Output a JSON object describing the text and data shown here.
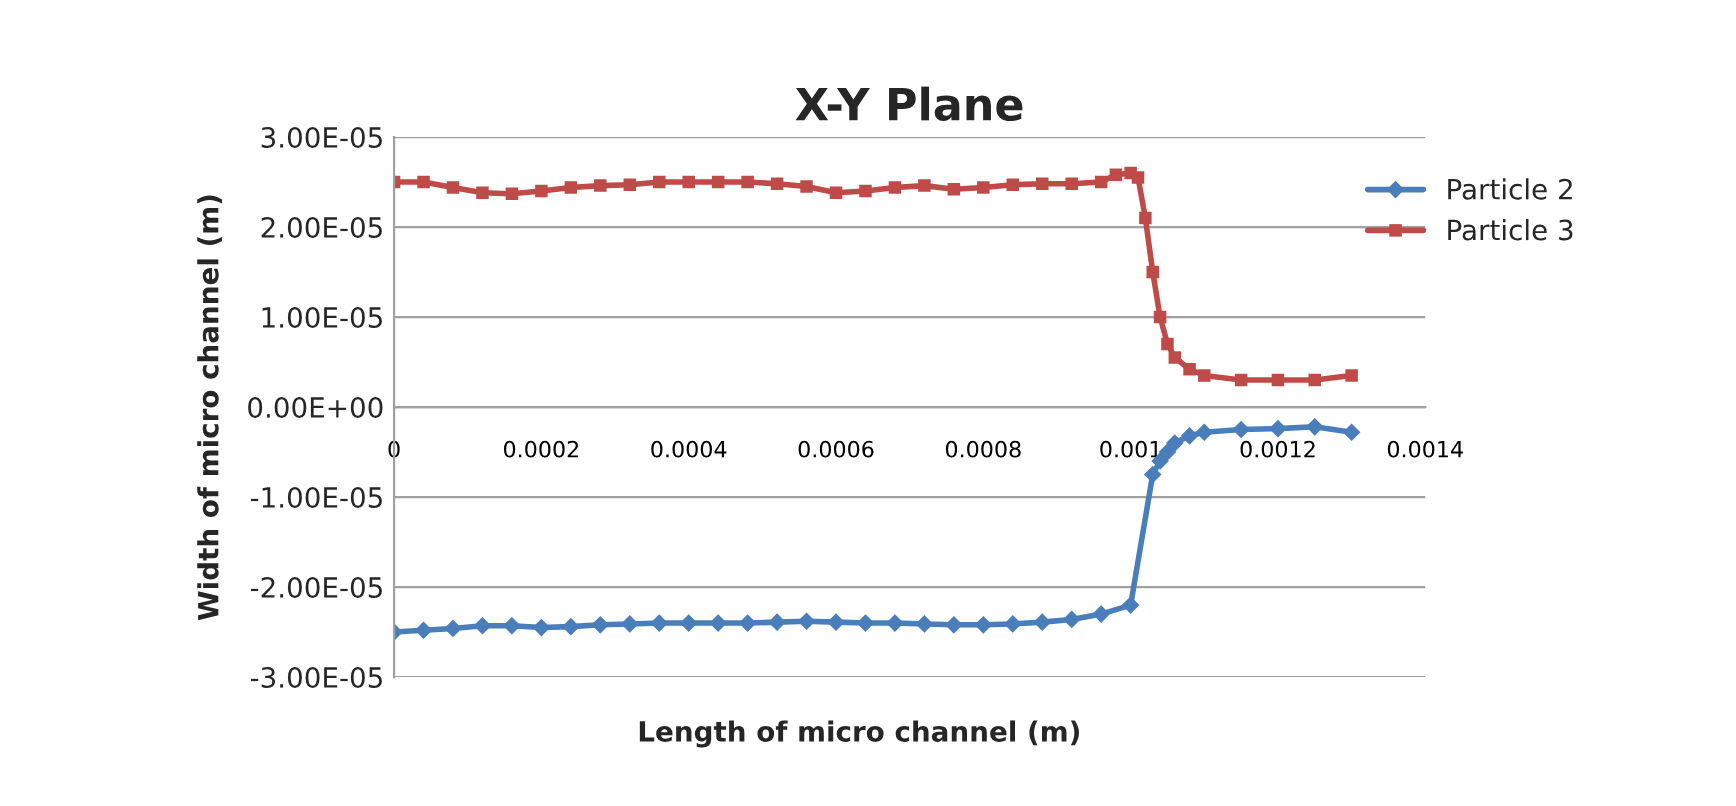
{
  "chart_data": {
    "type": "line",
    "title": "X-Y Plane",
    "xlabel": "Length of micro channel (m)",
    "ylabel": "Width of micro channel (m)",
    "xlim": [
      0,
      0.0014
    ],
    "xticks": [
      0,
      0.0002,
      0.0004,
      0.0006,
      0.0008,
      0.001,
      0.0012,
      0.0014
    ],
    "ylim": [
      -3e-05,
      3e-05
    ],
    "yticks": [
      {
        "value": -3e-05,
        "label": "-3.00E-05"
      },
      {
        "value": -2e-05,
        "label": "-2.00E-05"
      },
      {
        "value": -1e-05,
        "label": "-1.00E-05"
      },
      {
        "value": 0,
        "label": "0.00E+00"
      },
      {
        "value": 1e-05,
        "label": "1.00E-05"
      },
      {
        "value": 2e-05,
        "label": "2.00E-05"
      },
      {
        "value": 3e-05,
        "label": "3.00E-05"
      }
    ],
    "grid": "y",
    "legend": "right",
    "series": [
      {
        "name": "Particle 2",
        "color": "#4a7ebb",
        "marker": "diamond",
        "x": [
          0,
          4e-05,
          8e-05,
          0.00012,
          0.00016,
          0.0002,
          0.00024,
          0.00028,
          0.00032,
          0.00036,
          0.0004,
          0.00044,
          0.00048,
          0.00052,
          0.00056,
          0.0006,
          0.00064,
          0.00068,
          0.00072,
          0.00076,
          0.0008,
          0.00084,
          0.00088,
          0.00092,
          0.00096,
          0.001,
          0.00103,
          0.00104,
          0.00105,
          0.00106,
          0.00108,
          0.0011,
          0.00115,
          0.0012,
          0.00125,
          0.0013
        ],
        "values": [
          -2.5e-05,
          -2.48e-05,
          -2.46e-05,
          -2.43e-05,
          -2.43e-05,
          -2.45e-05,
          -2.44e-05,
          -2.42e-05,
          -2.41e-05,
          -2.4e-05,
          -2.4e-05,
          -2.4e-05,
          -2.4e-05,
          -2.39e-05,
          -2.38e-05,
          -2.39e-05,
          -2.4e-05,
          -2.4e-05,
          -2.41e-05,
          -2.42e-05,
          -2.42e-05,
          -2.41e-05,
          -2.39e-05,
          -2.36e-05,
          -2.3e-05,
          -2.2e-05,
          -7.5e-06,
          -6e-06,
          -5e-06,
          -4e-06,
          -3.2e-06,
          -2.8e-06,
          -2.5e-06,
          -2.4e-06,
          -2.2e-06,
          -2.8e-06
        ]
      },
      {
        "name": "Particle 3",
        "color": "#be4b48",
        "marker": "square",
        "x": [
          0,
          4e-05,
          8e-05,
          0.00012,
          0.00016,
          0.0002,
          0.00024,
          0.00028,
          0.00032,
          0.00036,
          0.0004,
          0.00044,
          0.00048,
          0.00052,
          0.00056,
          0.0006,
          0.00064,
          0.00068,
          0.00072,
          0.00076,
          0.0008,
          0.00084,
          0.00088,
          0.00092,
          0.00096,
          0.00098,
          0.001,
          0.00101,
          0.00102,
          0.00103,
          0.00104,
          0.00105,
          0.00106,
          0.00108,
          0.0011,
          0.00115,
          0.0012,
          0.00125,
          0.0013
        ],
        "values": [
          2.5e-05,
          2.5e-05,
          2.44e-05,
          2.38e-05,
          2.37e-05,
          2.4e-05,
          2.44e-05,
          2.46e-05,
          2.47e-05,
          2.5e-05,
          2.5e-05,
          2.5e-05,
          2.5e-05,
          2.48e-05,
          2.45e-05,
          2.38e-05,
          2.4e-05,
          2.44e-05,
          2.46e-05,
          2.42e-05,
          2.44e-05,
          2.47e-05,
          2.48e-05,
          2.48e-05,
          2.5e-05,
          2.58e-05,
          2.6e-05,
          2.55e-05,
          2.1e-05,
          1.5e-05,
          1e-05,
          7e-06,
          5.5e-06,
          4.2e-06,
          3.5e-06,
          3e-06,
          3e-06,
          3e-06,
          3.5e-06
        ]
      }
    ]
  }
}
